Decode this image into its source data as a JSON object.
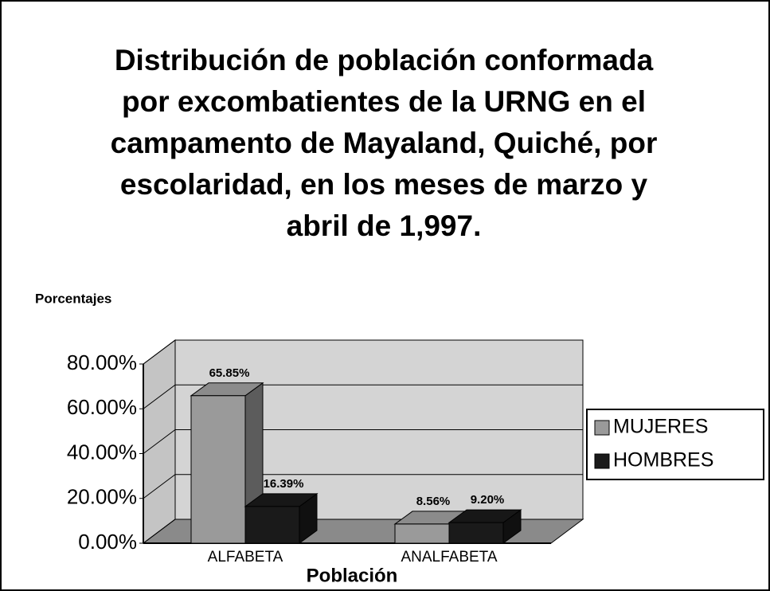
{
  "chart_data": {
    "type": "bar3d",
    "title": "Distribución de población conformada por excombatientes de la URNG en el campamento de Mayaland, Quiché, por  escolaridad, en los meses de marzo y abril de 1,997.",
    "y_axis_label": "Porcentajes",
    "x_axis_label": "Población",
    "categories": [
      "ALFABETA",
      "ANALFABETA"
    ],
    "series": [
      {
        "name": "MUJERES",
        "color": "#9a9a9a",
        "values": [
          65.85,
          8.56
        ],
        "value_labels": [
          "65.85%",
          "8.56%"
        ]
      },
      {
        "name": "HOMBRES",
        "color": "#1a1a1a",
        "values": [
          16.39,
          9.2
        ],
        "value_labels": [
          "16.39%",
          "9.20%"
        ]
      }
    ],
    "ylim": [
      0,
      80
    ],
    "yticks": [
      {
        "value": 0,
        "label": "0.00%"
      },
      {
        "value": 20,
        "label": "20.00%"
      },
      {
        "value": 40,
        "label": "40.00%"
      },
      {
        "value": 60,
        "label": "60.00%"
      },
      {
        "value": 80,
        "label": "80.00%"
      }
    ],
    "grid": true,
    "legend": "right"
  }
}
